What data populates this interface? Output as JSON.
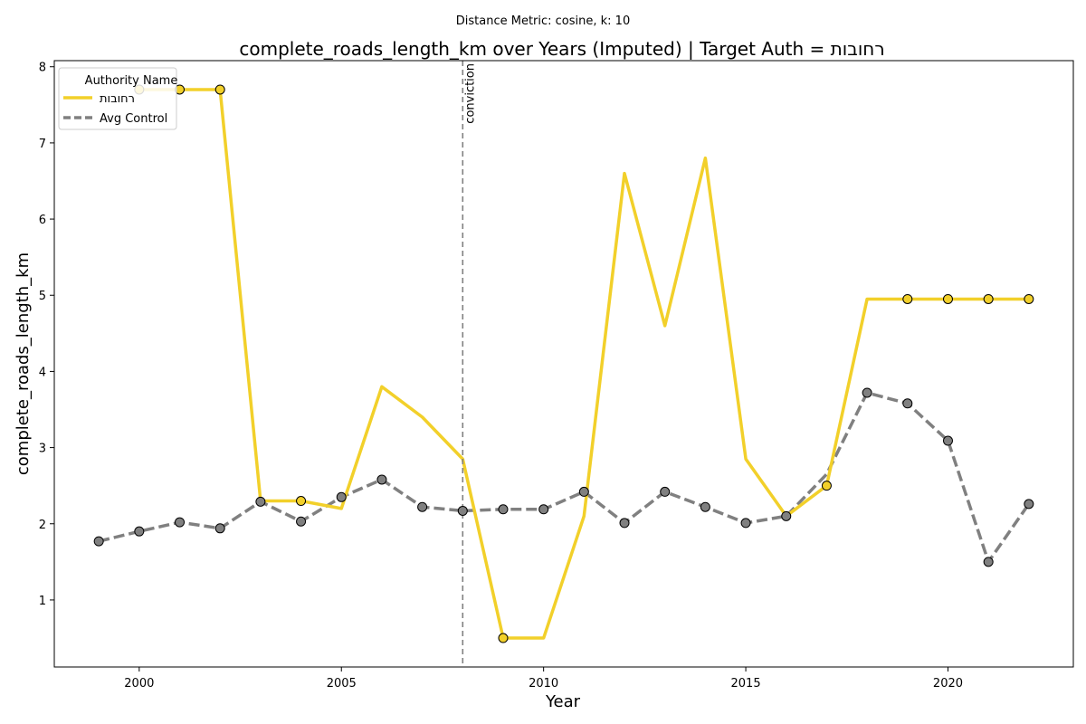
{
  "chart_data": {
    "type": "line",
    "suptitle": "Distance Metric: cosine, k: 10",
    "title": "complete_roads_length_km over Years (Imputed) | Target Auth = רחובות",
    "xlabel": "Year",
    "ylabel": "complete_roads_length_km",
    "xlim": [
      1997.9,
      2023.1
    ],
    "ylim": [
      0.12,
      8.08
    ],
    "x_ticks": [
      2000,
      2005,
      2010,
      2015,
      2020
    ],
    "y_ticks": [
      1,
      2,
      3,
      4,
      5,
      6,
      7,
      8
    ],
    "grid": false,
    "legend": {
      "title": "Authority Name",
      "placement": "top-left",
      "entries": [
        "רחובות",
        "Avg Control"
      ]
    },
    "annotations": [
      {
        "x": 2008,
        "text": "conviction",
        "style": "dashed-vertical-line"
      }
    ],
    "series": [
      {
        "name": "רחובות",
        "color": "#f2d02a",
        "line_style": "solid",
        "x": [
          1999,
          2000,
          2001,
          2002,
          2003,
          2004,
          2005,
          2006,
          2007,
          2008,
          2009,
          2010,
          2011,
          2012,
          2013,
          2014,
          2015,
          2016,
          2017,
          2018,
          2019,
          2020,
          2021,
          2022
        ],
        "y": [
          null,
          7.7,
          7.7,
          7.7,
          2.3,
          2.3,
          2.2,
          3.8,
          3.4,
          2.85,
          0.5,
          0.5,
          2.1,
          6.6,
          4.6,
          6.8,
          2.85,
          2.1,
          2.5,
          4.95,
          4.95,
          4.95,
          4.95,
          4.95
        ],
        "observed_markers": [
          2000,
          2001,
          2002,
          2004,
          2009,
          2017,
          2019,
          2020,
          2021,
          2022
        ]
      },
      {
        "name": "Avg Control",
        "color": "#808080",
        "line_style": "dashed",
        "x": [
          1999,
          2000,
          2001,
          2002,
          2003,
          2004,
          2005,
          2006,
          2007,
          2008,
          2009,
          2010,
          2011,
          2012,
          2013,
          2014,
          2015,
          2016,
          2017,
          2018,
          2019,
          2020,
          2021,
          2022
        ],
        "y": [
          1.77,
          1.9,
          2.02,
          1.94,
          2.29,
          2.03,
          2.35,
          2.58,
          2.22,
          2.17,
          2.19,
          2.19,
          2.42,
          2.01,
          2.42,
          2.22,
          2.01,
          2.1,
          2.65,
          3.72,
          3.58,
          3.09,
          1.5,
          2.26
        ],
        "observed_markers": [
          1999,
          2000,
          2001,
          2002,
          2003,
          2004,
          2005,
          2006,
          2007,
          2008,
          2009,
          2010,
          2011,
          2012,
          2013,
          2014,
          2015,
          2016,
          2018,
          2019,
          2020,
          2021,
          2022
        ]
      }
    ]
  }
}
